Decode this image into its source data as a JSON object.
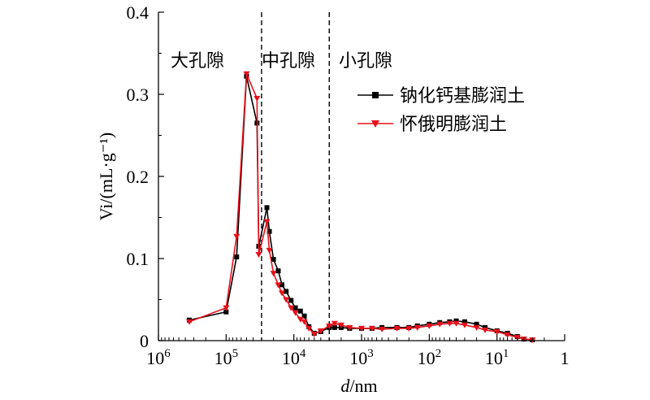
{
  "chart_data": {
    "type": "line",
    "x_scale": "log",
    "x_reversed": true,
    "xlim": [
      1000000,
      1
    ],
    "ylim": [
      0,
      0.4
    ],
    "grid": false,
    "legend_position": "top-right",
    "xlabel_italic": "d",
    "xlabel_unit": "/nm",
    "ylabel": "Vi/(mL·g⁻¹)",
    "y_ticks": [
      {
        "v": 0,
        "label": "0"
      },
      {
        "v": 0.1,
        "label": "0.1"
      },
      {
        "v": 0.2,
        "label": "0.2"
      },
      {
        "v": 0.3,
        "label": "0.3"
      },
      {
        "v": 0.4,
        "label": "0.4"
      }
    ],
    "x_ticks": [
      {
        "v": 1000000,
        "base": "10",
        "exp": "6"
      },
      {
        "v": 100000,
        "base": "10",
        "exp": "5"
      },
      {
        "v": 10000,
        "base": "10",
        "exp": "4"
      },
      {
        "v": 1000,
        "base": "10",
        "exp": "3"
      },
      {
        "v": 100,
        "base": "10",
        "exp": "2"
      },
      {
        "v": 10,
        "base": "10",
        "exp": "1"
      },
      {
        "v": 1,
        "base": "1",
        "exp": ""
      }
    ],
    "boundaries": [
      30000,
      3000
    ],
    "regions": [
      "大孔隙",
      "中孔隙",
      "小孔隙"
    ],
    "series": [
      {
        "name": "钠化钙基膨润土",
        "color": "#000000",
        "marker": "square",
        "points": [
          [
            350000,
            0.025
          ],
          [
            100000,
            0.035
          ],
          [
            70000,
            0.102
          ],
          [
            50000,
            0.322
          ],
          [
            35000,
            0.265
          ],
          [
            33000,
            0.115
          ],
          [
            25000,
            0.162
          ],
          [
            23000,
            0.133
          ],
          [
            20000,
            0.099
          ],
          [
            17000,
            0.085
          ],
          [
            15000,
            0.068
          ],
          [
            13000,
            0.06
          ],
          [
            11000,
            0.049
          ],
          [
            9500,
            0.04
          ],
          [
            8000,
            0.036
          ],
          [
            7000,
            0.03
          ],
          [
            6000,
            0.017
          ],
          [
            5000,
            0.009
          ],
          [
            4000,
            0.011
          ],
          [
            3000,
            0.016
          ],
          [
            2500,
            0.016
          ],
          [
            2000,
            0.016
          ],
          [
            1500,
            0.015
          ],
          [
            1000,
            0.015
          ],
          [
            700,
            0.015
          ],
          [
            500,
            0.016
          ],
          [
            300,
            0.016
          ],
          [
            200,
            0.016
          ],
          [
            150,
            0.018
          ],
          [
            100,
            0.02
          ],
          [
            70,
            0.022
          ],
          [
            50,
            0.023
          ],
          [
            40,
            0.024
          ],
          [
            30,
            0.023
          ],
          [
            20,
            0.02
          ],
          [
            15,
            0.016
          ],
          [
            10,
            0.012
          ],
          [
            7,
            0.009
          ],
          [
            5,
            0.005
          ],
          [
            4,
            0.002
          ],
          [
            3,
            0.001
          ]
        ]
      },
      {
        "name": "怀俄明膨润土",
        "color": "#e8101c",
        "marker": "triangle-down",
        "points": [
          [
            350000,
            0.023
          ],
          [
            100000,
            0.04
          ],
          [
            70000,
            0.127
          ],
          [
            50000,
            0.325
          ],
          [
            35000,
            0.295
          ],
          [
            33000,
            0.105
          ],
          [
            25000,
            0.145
          ],
          [
            23000,
            0.11
          ],
          [
            20000,
            0.082
          ],
          [
            17000,
            0.068
          ],
          [
            15000,
            0.058
          ],
          [
            13000,
            0.05
          ],
          [
            11000,
            0.04
          ],
          [
            9500,
            0.034
          ],
          [
            8000,
            0.026
          ],
          [
            7000,
            0.023
          ],
          [
            6000,
            0.015
          ],
          [
            5000,
            0.008
          ],
          [
            4000,
            0.012
          ],
          [
            3000,
            0.018
          ],
          [
            2500,
            0.021
          ],
          [
            2000,
            0.019
          ],
          [
            1500,
            0.016
          ],
          [
            1000,
            0.015
          ],
          [
            700,
            0.015
          ],
          [
            500,
            0.014
          ],
          [
            300,
            0.015
          ],
          [
            200,
            0.015
          ],
          [
            150,
            0.016
          ],
          [
            100,
            0.018
          ],
          [
            70,
            0.02
          ],
          [
            50,
            0.021
          ],
          [
            40,
            0.021
          ],
          [
            30,
            0.019
          ],
          [
            20,
            0.016
          ],
          [
            15,
            0.013
          ],
          [
            10,
            0.011
          ],
          [
            7,
            0.007
          ],
          [
            5,
            0.004
          ],
          [
            4,
            0.002
          ],
          [
            3,
            0.001
          ]
        ]
      }
    ]
  }
}
